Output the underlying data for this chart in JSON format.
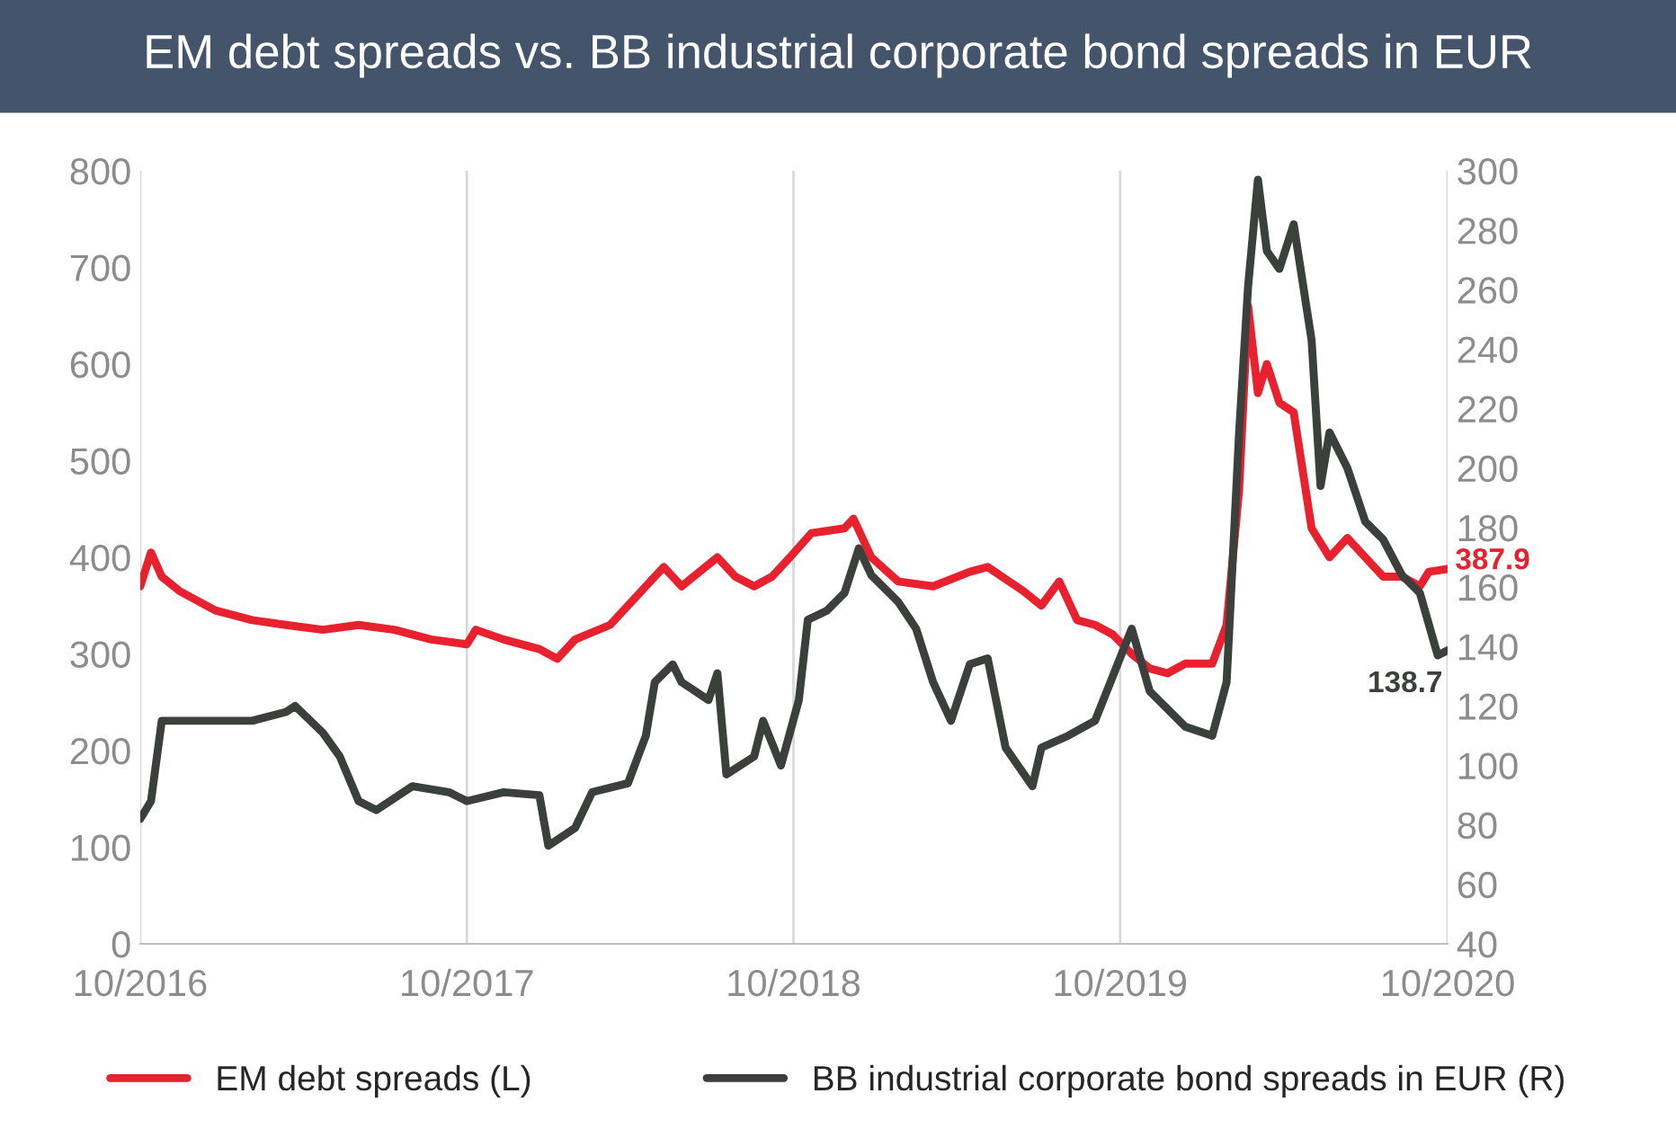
{
  "chart_data": {
    "type": "line",
    "title": "EM debt spreads vs. BB industrial corporate bond spreads in EUR",
    "xlim": [
      "2016-10-01",
      "2020-10-01"
    ],
    "xticks": [
      {
        "value": "2016-10-01",
        "label": "10/2016"
      },
      {
        "value": "2017-10-01",
        "label": "10/2017"
      },
      {
        "value": "2018-10-01",
        "label": "10/2018"
      },
      {
        "value": "2019-10-01",
        "label": "10/2019"
      },
      {
        "value": "2020-10-01",
        "label": "10/2020"
      }
    ],
    "ylim": [
      0,
      800
    ],
    "yticks": [
      0,
      100,
      200,
      300,
      400,
      500,
      600,
      700,
      800
    ],
    "y2lim": [
      40,
      300
    ],
    "y2ticks": [
      40,
      60,
      80,
      100,
      120,
      140,
      160,
      180,
      200,
      220,
      240,
      260,
      280,
      300
    ],
    "grid": "x",
    "legend": "bottom",
    "line_style": "solid",
    "series": [
      {
        "name": "EM debt spreads (L)",
        "color": "#e8212e",
        "axis": "y",
        "x": [
          "2016-10-01",
          "2016-10-13",
          "2016-10-25",
          "2016-11-14",
          "2016-12-24",
          "2017-02-03",
          "2017-03-13",
          "2017-04-23",
          "2017-06-02",
          "2017-07-12",
          "2017-08-22",
          "2017-10-01",
          "2017-10-11",
          "2017-11-11",
          "2017-12-21",
          "2018-01-10",
          "2018-01-30",
          "2018-03-10",
          "2018-03-30",
          "2018-05-09",
          "2018-05-29",
          "2018-07-08",
          "2018-07-28",
          "2018-08-18",
          "2018-09-07",
          "2018-09-27",
          "2018-10-21",
          "2018-11-27",
          "2018-12-07",
          "2018-12-27",
          "2019-01-26",
          "2019-03-06",
          "2019-04-16",
          "2019-05-06",
          "2019-06-15",
          "2019-07-05",
          "2019-07-25",
          "2019-08-14",
          "2019-09-03",
          "2019-09-23",
          "2019-10-14",
          "2019-11-03",
          "2019-11-23",
          "2019-12-13",
          "2020-01-12",
          "2020-01-28",
          "2020-02-11",
          "2020-02-21",
          "2020-03-03",
          "2020-03-13",
          "2020-03-27",
          "2020-04-12",
          "2020-05-02",
          "2020-05-22",
          "2020-06-11",
          "2020-07-01",
          "2020-07-21",
          "2020-08-11",
          "2020-08-31",
          "2020-09-10",
          "2020-10-01"
        ],
        "values": [
          370,
          405,
          380,
          365,
          345,
          335,
          330,
          325,
          330,
          325,
          315,
          310,
          325,
          315,
          305,
          295,
          315,
          330,
          350,
          390,
          370,
          400,
          380,
          370,
          380,
          400,
          425,
          430,
          440,
          400,
          375,
          370,
          385,
          390,
          365,
          350,
          375,
          335,
          330,
          320,
          300,
          285,
          280,
          290,
          290,
          330,
          470,
          660,
          570,
          600,
          560,
          550,
          430,
          400,
          420,
          400,
          380,
          380,
          370,
          385,
          387.9
        ],
        "value_labels": [
          null,
          null,
          null,
          null,
          null,
          null,
          null,
          null,
          null,
          null,
          null,
          null,
          null,
          null,
          null,
          null,
          null,
          null,
          null,
          null,
          null,
          null,
          null,
          null,
          null,
          null,
          null,
          null,
          null,
          null,
          null,
          null,
          null,
          null,
          null,
          null,
          null,
          null,
          null,
          null,
          null,
          null,
          null,
          null,
          null,
          null,
          null,
          null,
          null,
          null,
          null,
          null,
          null,
          null,
          null,
          null,
          null,
          null,
          null,
          null,
          "387.9"
        ]
      },
      {
        "name": "BB industrial corporate bond spreads in EUR (R)",
        "color": "#3c403c",
        "axis": "y2",
        "x": [
          "2016-10-01",
          "2016-10-13",
          "2016-10-25",
          "2016-11-14",
          "2016-12-24",
          "2017-02-03",
          "2017-03-13",
          "2017-03-23",
          "2017-04-23",
          "2017-05-12",
          "2017-06-02",
          "2017-06-22",
          "2017-08-01",
          "2017-09-11",
          "2017-10-01",
          "2017-11-11",
          "2017-12-21",
          "2017-12-31",
          "2018-01-30",
          "2018-02-18",
          "2018-03-30",
          "2018-04-19",
          "2018-04-29",
          "2018-05-19",
          "2018-05-29",
          "2018-06-28",
          "2018-07-08",
          "2018-07-18",
          "2018-08-18",
          "2018-08-28",
          "2018-09-17",
          "2018-10-07",
          "2018-10-17",
          "2018-11-07",
          "2018-11-27",
          "2018-12-13",
          "2018-12-27",
          "2019-01-26",
          "2019-02-15",
          "2019-03-06",
          "2019-03-26",
          "2019-04-16",
          "2019-05-06",
          "2019-05-26",
          "2019-06-25",
          "2019-07-05",
          "2019-08-04",
          "2019-09-03",
          "2019-10-14",
          "2019-11-03",
          "2019-12-13",
          "2020-01-12",
          "2020-01-28",
          "2020-02-11",
          "2020-02-21",
          "2020-03-03",
          "2020-03-13",
          "2020-03-27",
          "2020-04-12",
          "2020-05-02",
          "2020-05-12",
          "2020-05-22",
          "2020-06-11",
          "2020-07-01",
          "2020-07-21",
          "2020-08-11",
          "2020-08-31",
          "2020-09-20",
          "2020-10-01"
        ],
        "values": [
          82,
          88,
          115,
          115,
          115,
          115,
          118,
          120,
          111,
          103,
          88,
          85,
          93,
          91,
          88,
          91,
          90,
          73,
          79,
          91,
          94,
          110,
          128,
          134,
          128,
          122,
          131,
          97,
          103,
          115,
          100,
          122,
          149,
          152,
          158,
          173,
          164,
          155,
          146,
          128,
          115,
          134,
          136,
          106,
          93,
          106,
          110,
          115,
          146,
          125,
          113,
          110,
          128,
          212,
          261,
          297,
          273,
          267,
          282,
          243,
          194,
          212,
          200,
          182,
          176,
          164,
          158,
          137,
          138.7
        ],
        "value_labels": [
          null,
          null,
          null,
          null,
          null,
          null,
          null,
          null,
          null,
          null,
          null,
          null,
          null,
          null,
          null,
          null,
          null,
          null,
          null,
          null,
          null,
          null,
          null,
          null,
          null,
          null,
          null,
          null,
          null,
          null,
          null,
          null,
          null,
          null,
          null,
          null,
          null,
          null,
          null,
          null,
          null,
          null,
          null,
          null,
          null,
          null,
          null,
          null,
          null,
          null,
          null,
          null,
          null,
          null,
          null,
          null,
          null,
          null,
          null,
          null,
          null,
          null,
          null,
          null,
          null,
          null,
          null,
          null,
          "138.7"
        ]
      }
    ]
  }
}
